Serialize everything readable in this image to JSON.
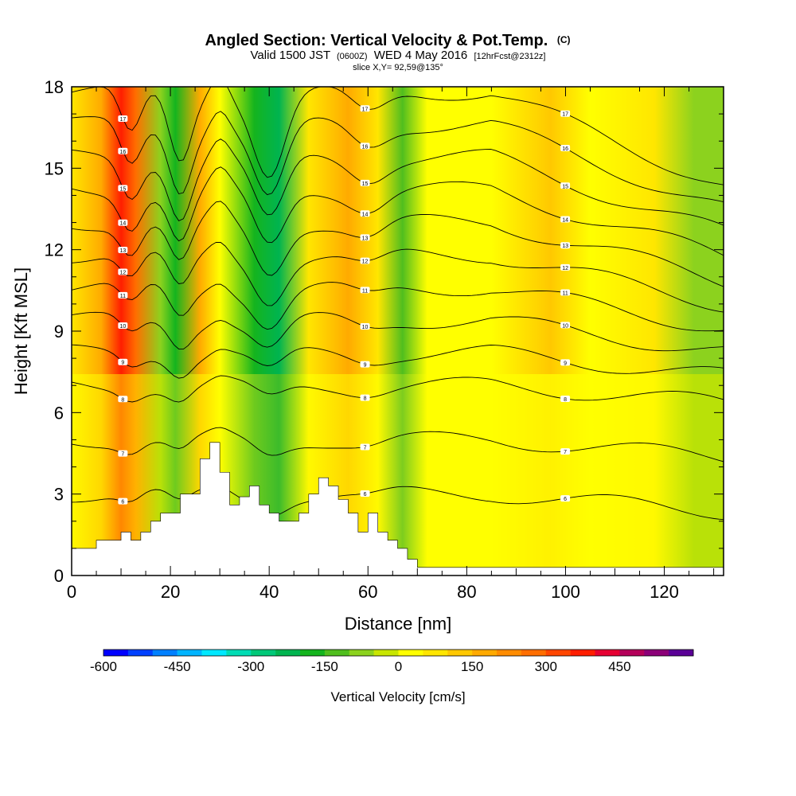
{
  "chart_data": {
    "type": "heatmap",
    "title": "Angled Section: Vertical Velocity & Pot.Temp.",
    "title_suffix": "(C)",
    "subtitle_parts": [
      "Valid 1500 JST",
      "(0600Z)",
      "WED 4 May 2016",
      "[12hrFcst@2312z]"
    ],
    "slice_label": "slice X,Y= 92,59@135°",
    "xlabel": "Distance [nm]",
    "ylabel": "Height [Kft MSL]",
    "xlim": [
      0,
      132
    ],
    "ylim": [
      0,
      18
    ],
    "x_ticks": [
      "0",
      "20",
      "40",
      "60",
      "80",
      "100",
      "120"
    ],
    "y_ticks": [
      "0",
      "3",
      "6",
      "9",
      "12",
      "15",
      "18"
    ],
    "colorbar": {
      "label": "Vertical Velocity [cm/s]",
      "tick_labels": [
        "-600",
        "-450",
        "-300",
        "-150",
        "0",
        "150",
        "300",
        "450"
      ],
      "colors": [
        "#0000ff",
        "#0040ff",
        "#0080ff",
        "#00b4ff",
        "#00e8ff",
        "#00dcb4",
        "#00c878",
        "#00b450",
        "#14b41e",
        "#50be1e",
        "#8cd21e",
        "#c8e600",
        "#ffff00",
        "#ffe600",
        "#ffc800",
        "#ffaa00",
        "#ff8c00",
        "#ff6e00",
        "#ff4600",
        "#ff1e00",
        "#e60032",
        "#b4005a",
        "#8c0078",
        "#5a0096"
      ]
    },
    "velocity_bands": [
      {
        "x": 0,
        "value": 60
      },
      {
        "x": 6,
        "value": 150
      },
      {
        "x": 10,
        "value": 380
      },
      {
        "x": 13,
        "value": 260
      },
      {
        "x": 18,
        "value": -100
      },
      {
        "x": 21,
        "value": -180
      },
      {
        "x": 26,
        "value": 160
      },
      {
        "x": 30,
        "value": 40
      },
      {
        "x": 37,
        "value": -160
      },
      {
        "x": 42,
        "value": -250
      },
      {
        "x": 48,
        "value": 50
      },
      {
        "x": 56,
        "value": 170
      },
      {
        "x": 62,
        "value": 60
      },
      {
        "x": 67,
        "value": -140
      },
      {
        "x": 72,
        "value": 20
      },
      {
        "x": 85,
        "value": 40
      },
      {
        "x": 97,
        "value": 110
      },
      {
        "x": 105,
        "value": 40
      },
      {
        "x": 118,
        "value": 60
      },
      {
        "x": 126,
        "value": -60
      },
      {
        "x": 132,
        "value": -60
      }
    ],
    "theta_levels": [
      {
        "label": "17",
        "level": 17.8
      },
      {
        "label": "16",
        "level": 16.6
      },
      {
        "label": "15",
        "level": 15.4
      },
      {
        "label": "14",
        "level": 14.2
      },
      {
        "label": "13",
        "level": 13.0
      },
      {
        "label": "12",
        "level": 11.8
      },
      {
        "label": "11",
        "level": 10.6
      },
      {
        "label": "10",
        "level": 9.4
      },
      {
        "label": "9",
        "level": 8.2
      },
      {
        "label": "8",
        "level": 7.0
      },
      {
        "label": "7",
        "level": 5.0
      },
      {
        "label": "6",
        "level": 3.0
      }
    ],
    "terrain": {
      "x": [
        0,
        5,
        10,
        12,
        14,
        16,
        18,
        20,
        22,
        26,
        28,
        30,
        32,
        34,
        36,
        38,
        40,
        42,
        44,
        46,
        48,
        50,
        52,
        54,
        56,
        58,
        60,
        62,
        64,
        66,
        68,
        70,
        72,
        132
      ],
      "height": [
        1.0,
        1.3,
        1.6,
        1.3,
        1.6,
        2.0,
        2.3,
        2.3,
        3.0,
        4.3,
        4.9,
        3.8,
        2.6,
        2.9,
        3.3,
        2.6,
        2.3,
        2.0,
        2.0,
        2.3,
        3.0,
        3.6,
        3.3,
        2.8,
        2.3,
        1.6,
        2.3,
        1.6,
        1.3,
        1.0,
        0.6,
        0.3,
        0.3,
        0.3
      ]
    }
  }
}
